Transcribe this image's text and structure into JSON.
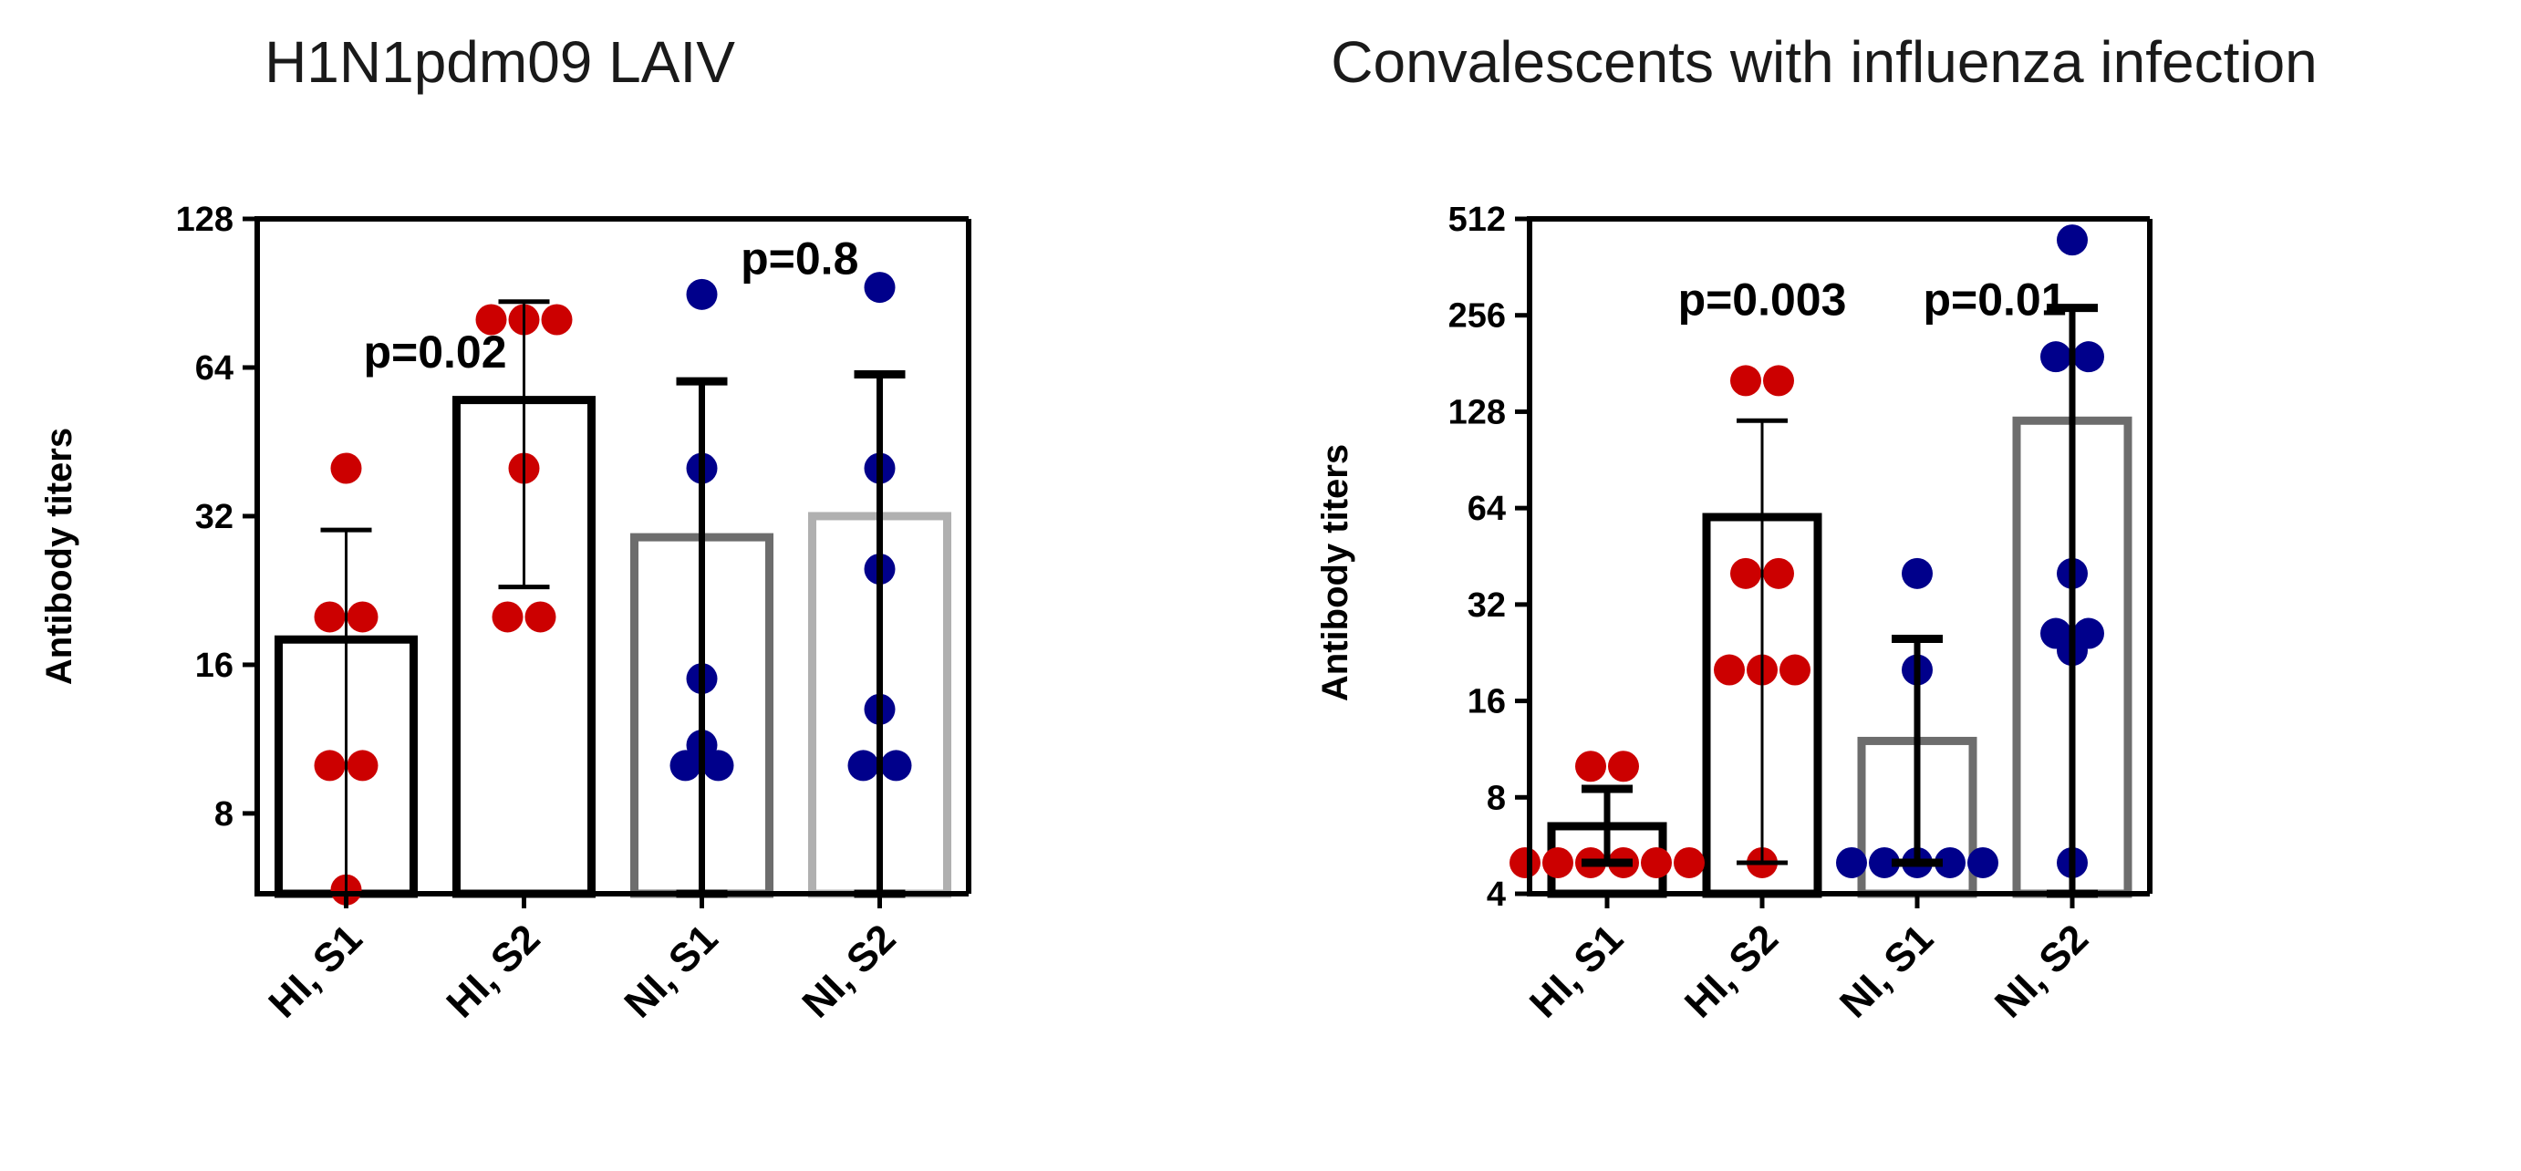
{
  "chart_data": [
    {
      "type": "bar",
      "title": "H1N1pdm09 LAIV",
      "ylabel": "Antibody titers",
      "xlabel": "",
      "yscale": "log2",
      "ylim": [
        5.5,
        128
      ],
      "yticks": [
        8,
        16,
        32,
        64,
        128
      ],
      "categories": [
        "HI, S1",
        "HI, S2",
        "NI, S1",
        "NI, S2"
      ],
      "bar_colors": [
        "#000000",
        "#000000",
        "#6d6d6d",
        "#b0b0b0"
      ],
      "point_colors": [
        "#cc0000",
        "#cc0000",
        "#00008b",
        "#00008b"
      ],
      "series": [
        {
          "name": "mean",
          "values": [
            18,
            55,
            29,
            32
          ]
        },
        {
          "name": "error_low",
          "values": [
            5.5,
            23,
            5.5,
            5.5
          ]
        },
        {
          "name": "error_high",
          "values": [
            30,
            87,
            60,
            62
          ]
        }
      ],
      "points": [
        [
          40,
          20,
          20,
          10,
          10,
          5.6
        ],
        [
          80,
          80,
          80,
          40,
          20,
          20
        ],
        [
          90,
          40,
          15,
          11,
          10,
          10
        ],
        [
          93,
          40,
          25,
          13,
          10,
          10
        ]
      ],
      "annotations": [
        {
          "text": "p=0.02",
          "x": 0.5,
          "y": 64
        },
        {
          "text": "p=0.8",
          "x": 2.55,
          "y": 99
        }
      ]
    },
    {
      "type": "bar",
      "title": "Convalescents with influenza infection",
      "ylabel": "Antibody titers",
      "xlabel": "",
      "yscale": "log2",
      "ylim": [
        4,
        512
      ],
      "yticks": [
        4,
        8,
        16,
        32,
        64,
        128,
        256,
        512
      ],
      "categories": [
        "HI, S1",
        "HI, S2",
        "NI, S1",
        "NI, S2"
      ],
      "bar_colors": [
        "#000000",
        "#000000",
        "#6d6d6d",
        "#6d6d6d"
      ],
      "point_colors": [
        "#cc0000",
        "#cc0000",
        "#00008b",
        "#00008b"
      ],
      "series": [
        {
          "name": "mean",
          "values": [
            6.5,
            60,
            12,
            120
          ]
        },
        {
          "name": "error_low",
          "values": [
            5,
            5,
            5,
            4
          ]
        },
        {
          "name": "error_high",
          "values": [
            8.5,
            120,
            25,
            270
          ]
        }
      ],
      "points": [
        [
          10,
          10,
          5,
          5,
          5,
          5,
          5,
          5
        ],
        [
          160,
          160,
          40,
          40,
          20,
          20,
          20,
          5
        ],
        [
          40,
          20,
          5,
          5,
          5,
          5,
          5
        ],
        [
          440,
          190,
          190,
          40,
          26,
          26,
          23,
          5
        ]
      ],
      "annotations": [
        {
          "text": "p=0.003",
          "x": 1.0,
          "y": 256
        },
        {
          "text": "p=0.01",
          "x": 2.5,
          "y": 256
        }
      ]
    }
  ]
}
